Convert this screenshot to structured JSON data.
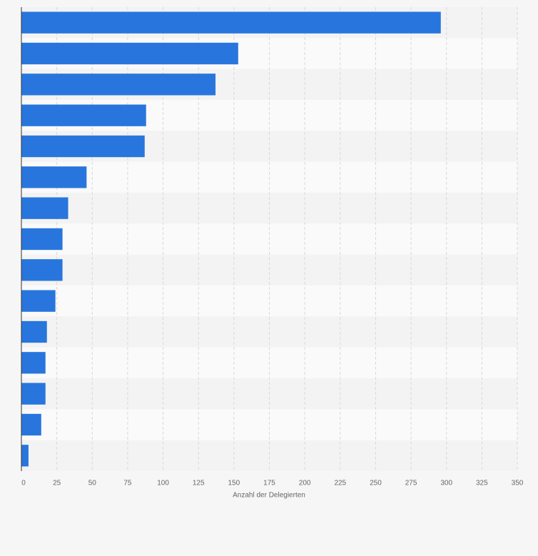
{
  "chart_data": {
    "type": "bar",
    "orientation": "horizontal",
    "x_label": "Anzahl der Delegierten",
    "categories": [
      null,
      null,
      null,
      null,
      null,
      null,
      null,
      null,
      null,
      null,
      null,
      null,
      null,
      null,
      null
    ],
    "values": [
      296,
      153,
      137,
      88,
      87,
      46,
      33,
      29,
      29,
      24,
      18,
      17,
      17,
      14,
      5
    ],
    "color": "#2876dd",
    "xlim": [
      0,
      350
    ],
    "xticks": [
      0,
      25,
      50,
      75,
      100,
      125,
      150,
      175,
      200,
      225,
      250,
      275,
      300,
      325,
      350
    ],
    "grid": true
  }
}
